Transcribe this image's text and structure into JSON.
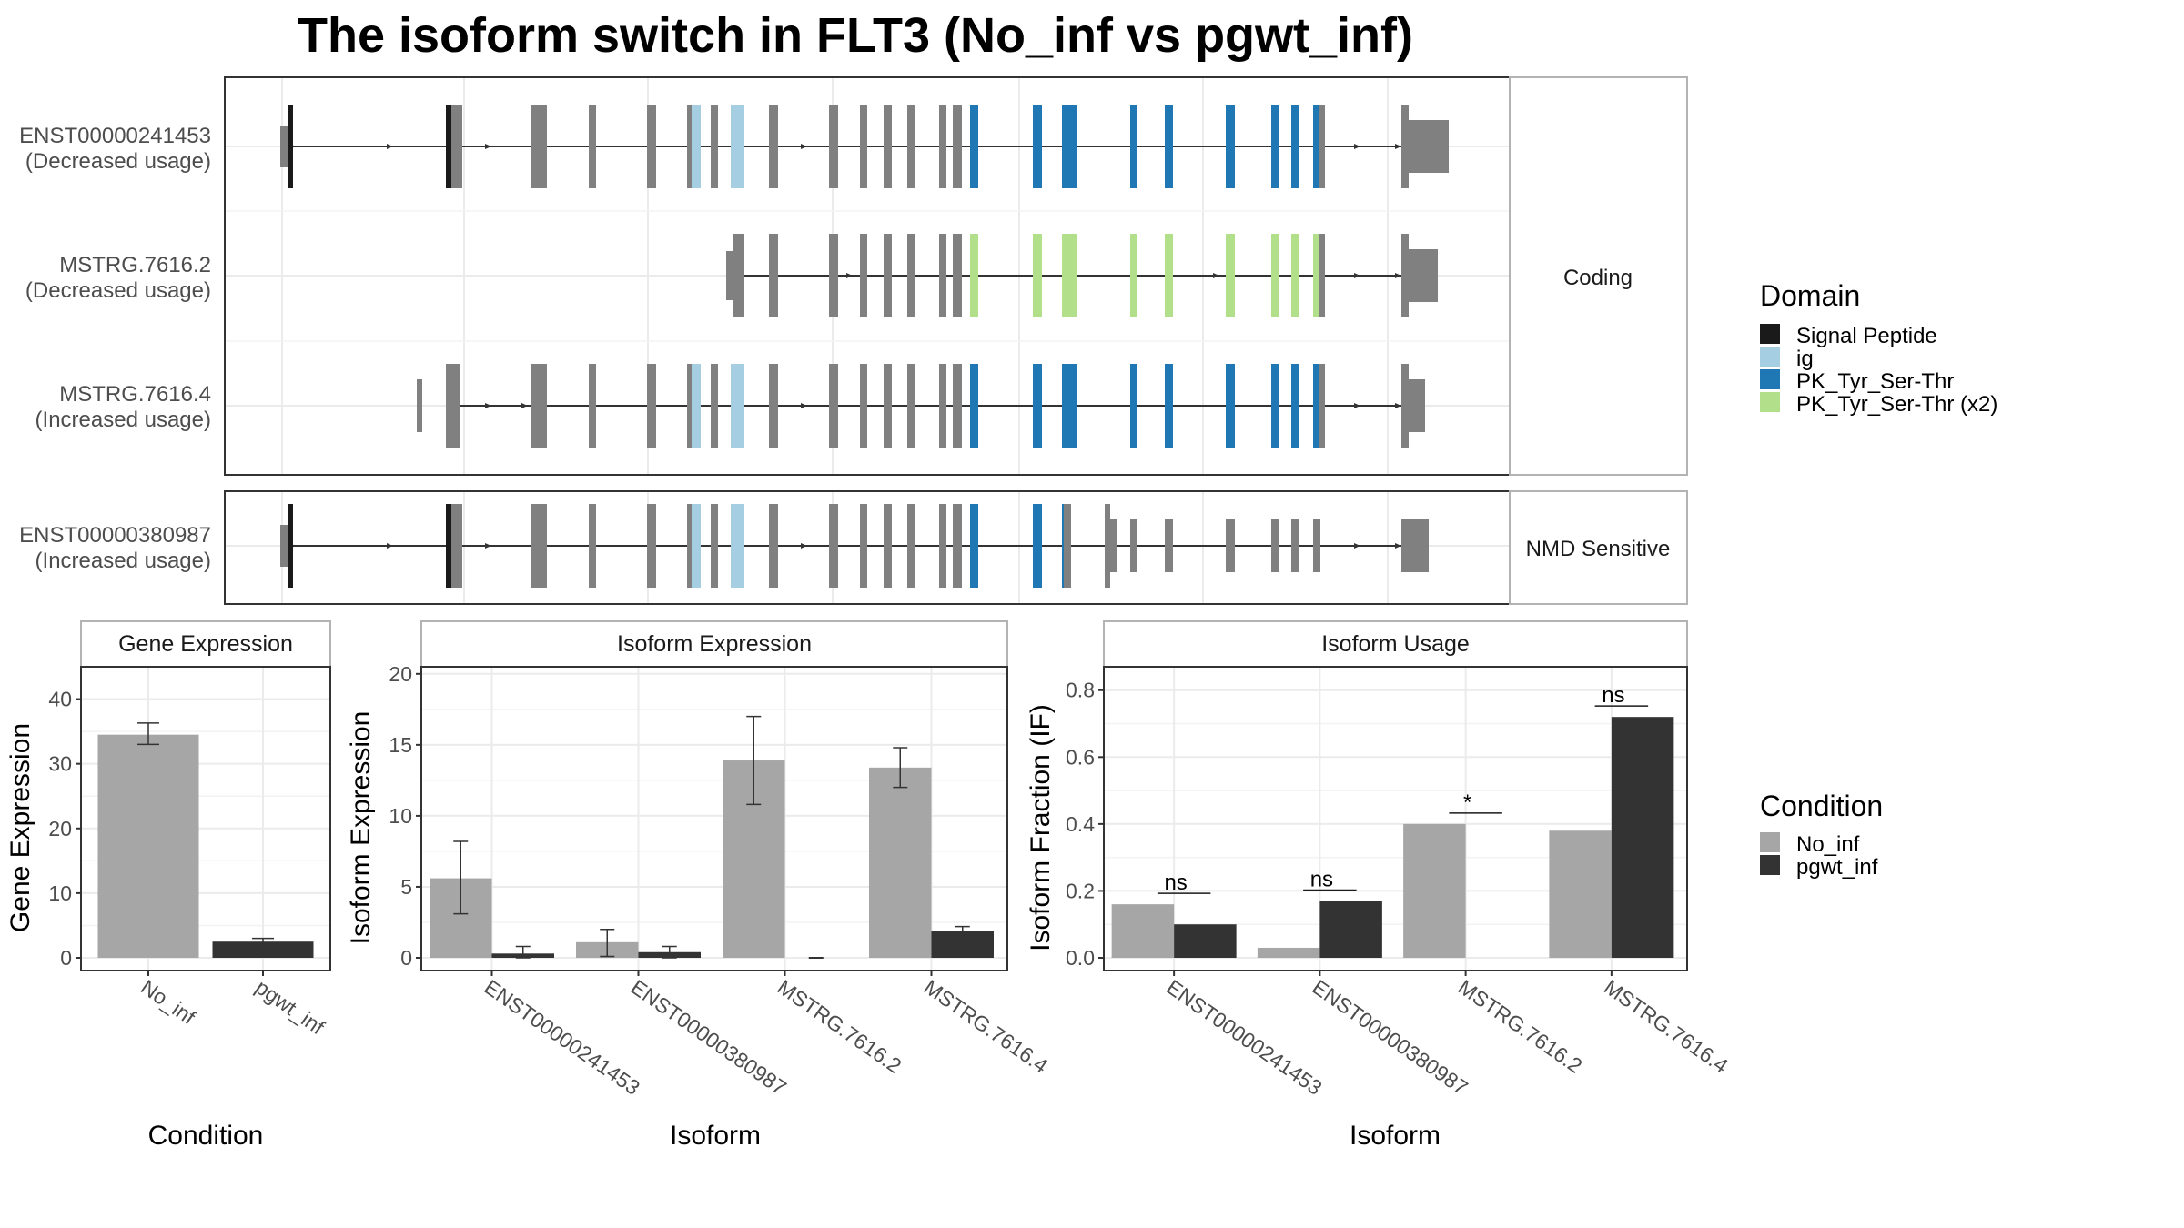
{
  "title": "The isoform switch in FLT3 (No_inf vs pgwt_inf)",
  "colors": {
    "signal_peptide": "#1a1a1a",
    "ig": "#a6cee3",
    "pk": "#1f78b4",
    "pk_x2": "#b2df8a",
    "exon": "#808080",
    "no_inf": "#a6a6a6",
    "pgwt_inf": "#333333",
    "panel_border": "#333333",
    "strip_border": "#b3b3b3",
    "grid": "#ebebeb"
  },
  "structure": {
    "coding_label": "Coding",
    "nmd_label": "NMD Sensitive",
    "isoforms": [
      {
        "id": "ENST00000241453",
        "usage": "(Decreased usage)",
        "group": "coding"
      },
      {
        "id": "MSTRG.7616.2",
        "usage": "(Decreased usage)",
        "group": "coding"
      },
      {
        "id": "MSTRG.7616.4",
        "usage": "(Increased usage)",
        "group": "coding"
      },
      {
        "id": "ENST00000380987",
        "usage": "(Increased usage)",
        "group": "nmd"
      }
    ]
  },
  "legend_domain": {
    "title": "Domain",
    "entries": [
      {
        "label": "Signal Peptide",
        "color": "#1a1a1a"
      },
      {
        "label": "ig",
        "color": "#a6cee3"
      },
      {
        "label": "PK_Tyr_Ser-Thr",
        "color": "#1f78b4"
      },
      {
        "label": "PK_Tyr_Ser-Thr (x2)",
        "color": "#b2df8a"
      }
    ]
  },
  "legend_condition": {
    "title": "Condition",
    "entries": [
      {
        "label": "No_inf",
        "color": "#a6a6a6"
      },
      {
        "label": "pgwt_inf",
        "color": "#333333"
      }
    ]
  },
  "chart_data": [
    {
      "type": "bar",
      "title": "Gene Expression",
      "xlabel": "Condition",
      "ylabel": "Gene Expression",
      "ylim": [
        0,
        45
      ],
      "yticks": [
        0,
        10,
        20,
        30,
        40
      ],
      "categories": [
        "No_inf",
        "pgwt_inf"
      ],
      "values": [
        34.5,
        2.5
      ],
      "errors": [
        [
          33,
          36.3
        ],
        [
          2.0,
          3.0
        ]
      ],
      "colors": [
        "#a6a6a6",
        "#333333"
      ]
    },
    {
      "type": "bar",
      "title": "Isoform Expression",
      "xlabel": "Isoform",
      "ylabel": "Isoform Expression",
      "ylim": [
        0,
        20.5
      ],
      "yticks": [
        0,
        5,
        10,
        15,
        20
      ],
      "categories": [
        "ENST00000241453",
        "ENST00000380987",
        "MSTRG.7616.2",
        "MSTRG.7616.4"
      ],
      "series": [
        {
          "name": "No_inf",
          "values": [
            5.6,
            1.1,
            13.9,
            13.4
          ],
          "errors": [
            [
              3.1,
              8.2
            ],
            [
              0.1,
              2.0
            ],
            [
              10.8,
              17.0
            ],
            [
              12.0,
              14.8
            ]
          ]
        },
        {
          "name": "pgwt_inf",
          "values": [
            0.3,
            0.4,
            0.0,
            1.9
          ],
          "errors": [
            [
              0.0,
              0.8
            ],
            [
              0.0,
              0.8
            ],
            [
              0.0,
              0.0
            ],
            [
              1.5,
              2.2
            ]
          ]
        }
      ]
    },
    {
      "type": "bar",
      "title": "Isoform Usage",
      "xlabel": "Isoform",
      "ylabel": "Isoform Fraction (IF)",
      "ylim": [
        0,
        0.87
      ],
      "yticks": [
        "0.0",
        "0.2",
        "0.4",
        "0.6",
        "0.8"
      ],
      "categories": [
        "ENST00000241453",
        "ENST00000380987",
        "MSTRG.7616.2",
        "MSTRG.7616.4"
      ],
      "series": [
        {
          "name": "No_inf",
          "values": [
            0.16,
            0.03,
            0.4,
            0.38
          ]
        },
        {
          "name": "pgwt_inf",
          "values": [
            0.1,
            0.17,
            0.0,
            0.72
          ]
        }
      ],
      "annotations": [
        "ns",
        "ns",
        "*",
        "ns"
      ]
    }
  ]
}
